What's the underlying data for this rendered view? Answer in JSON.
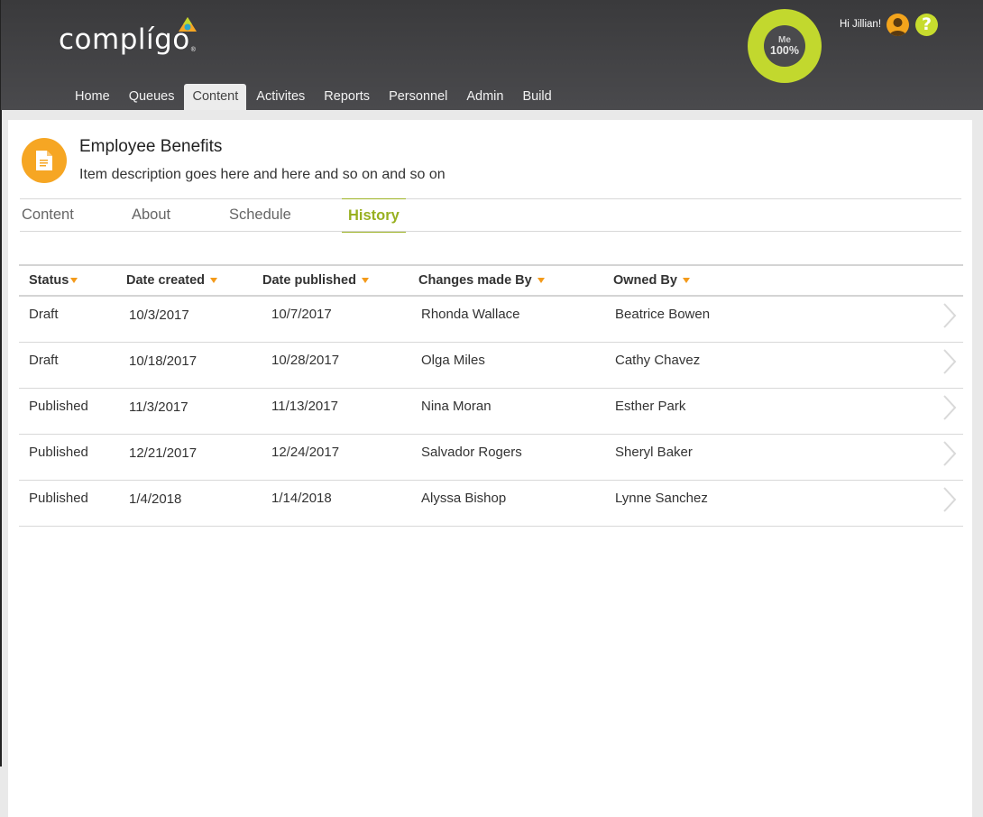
{
  "app": {
    "logo_text": "complígo",
    "logo_mark": "®",
    "colors": {
      "header": "#3f3f42",
      "accent_green": "#98b020",
      "accent_orange": "#f6a623",
      "ring": "#c2d82e"
    }
  },
  "nav": {
    "items": [
      {
        "label": "Home",
        "active": false
      },
      {
        "label": "Queues",
        "active": false
      },
      {
        "label": "Content",
        "active": true
      },
      {
        "label": "Activites",
        "active": false
      },
      {
        "label": "Reports",
        "active": false
      },
      {
        "label": "Personnel",
        "active": false
      },
      {
        "label": "Admin",
        "active": false
      },
      {
        "label": "Build",
        "active": false
      }
    ]
  },
  "user": {
    "greeting": "Hi Jillian!",
    "progress_label": "Me",
    "progress_value": "100%",
    "avatar_icon": "user-avatar-icon",
    "help_icon": "help-icon",
    "help_glyph": "?"
  },
  "item": {
    "icon": "document-icon",
    "title": "Employee Benefits",
    "description": "Item description goes here and here and so on and so on"
  },
  "tabs": [
    {
      "label": "Content",
      "active": false
    },
    {
      "label": "About",
      "active": false
    },
    {
      "label": "Schedule",
      "active": false
    },
    {
      "label": "History",
      "active": true
    }
  ],
  "history": {
    "columns": [
      "Status",
      "Date created",
      "Date published",
      "Changes made By",
      "Owned By"
    ],
    "rows": [
      [
        "Draft",
        "10/3/2017",
        "10/7/2017",
        "Rhonda Wallace",
        "Beatrice Bowen"
      ],
      [
        "Draft",
        "10/18/2017",
        "10/28/2017",
        "Olga Miles",
        "Cathy Chavez"
      ],
      [
        "Published",
        "11/3/2017",
        "11/13/2017",
        "Nina Moran",
        "Esther Park"
      ],
      [
        "Published",
        "12/21/2017",
        "12/24/2017",
        "Salvador Rogers",
        "Sheryl Baker"
      ],
      [
        "Published",
        "1/4/2018",
        "1/14/2018",
        "Alyssa Bishop",
        "Lynne Sanchez"
      ]
    ],
    "row_action_icon": "chevron-right-icon"
  }
}
